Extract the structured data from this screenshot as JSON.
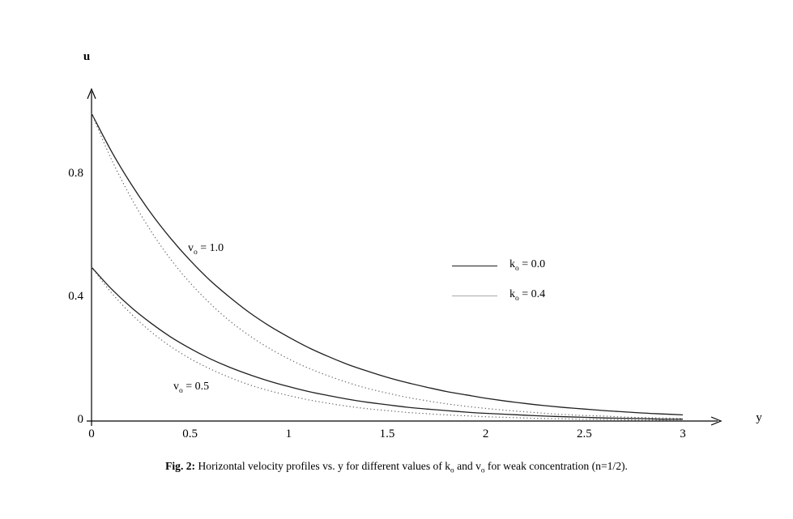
{
  "figure": {
    "caption": {
      "label": "Fig. 2:",
      "part1": " Horizontal velocity profiles vs. y for different values of k",
      "sub1": "o",
      "part2": " and v",
      "sub2": "o",
      "part3": " for weak concentration (n=1/2)."
    }
  },
  "legend": {
    "items": [
      {
        "pre": "k",
        "sub": "o",
        "post": " = 0.0",
        "style": "solid"
      },
      {
        "pre": "k",
        "sub": "o",
        "post": " = 0.4",
        "style": "dotted"
      }
    ]
  },
  "annotations": [
    {
      "pre": "v",
      "sub": "o",
      "post": " = 1.0"
    },
    {
      "pre": "v",
      "sub": "o",
      "post": " = 0.5"
    }
  ],
  "colors": {
    "axis": "#000000",
    "solid_line": "#1f1f1f",
    "dotted_line": "#666666",
    "background": "#ffffff"
  },
  "chart_data": {
    "type": "line",
    "title": "",
    "xlabel": "y",
    "ylabel": "u",
    "xlim": [
      0,
      3
    ],
    "ylim": [
      0,
      1.0
    ],
    "xticks": [
      "0",
      "0.5",
      "1",
      "1.5",
      "2",
      "2.5",
      "3"
    ],
    "yticks": [
      "0",
      "0.4",
      "0.8"
    ],
    "grid": false,
    "legend_position": "right-middle",
    "x": [
      0,
      0.1,
      0.2,
      0.3,
      0.4,
      0.5,
      0.6,
      0.7,
      0.8,
      0.9,
      1.0,
      1.1,
      1.2,
      1.3,
      1.4,
      1.5,
      1.6,
      1.7,
      1.8,
      1.9,
      2.0,
      2.1,
      2.2,
      2.3,
      2.4,
      2.5,
      2.6,
      2.7,
      2.8,
      2.9,
      3.0
    ],
    "series": [
      {
        "name": "v0=1.0 k0=0.0",
        "style": "solid",
        "values": [
          1.0,
          0.878,
          0.771,
          0.677,
          0.595,
          0.522,
          0.458,
          0.403,
          0.353,
          0.31,
          0.273,
          0.239,
          0.21,
          0.184,
          0.162,
          0.142,
          0.125,
          0.11,
          0.096,
          0.085,
          0.074,
          0.065,
          0.057,
          0.05,
          0.044,
          0.039,
          0.034,
          0.03,
          0.026,
          0.023,
          0.02
        ]
      },
      {
        "name": "v0=1.0 k0=0.4",
        "style": "dotted",
        "values": [
          1.0,
          0.852,
          0.726,
          0.619,
          0.527,
          0.449,
          0.383,
          0.326,
          0.278,
          0.237,
          0.202,
          0.172,
          0.147,
          0.125,
          0.106,
          0.091,
          0.077,
          0.066,
          0.056,
          0.048,
          0.041,
          0.035,
          0.03,
          0.025,
          0.021,
          0.018,
          0.016,
          0.013,
          0.011,
          0.01,
          0.008
        ]
      },
      {
        "name": "v0=0.5 k0=0.0",
        "style": "solid",
        "values": [
          0.5,
          0.43,
          0.37,
          0.319,
          0.274,
          0.236,
          0.203,
          0.175,
          0.151,
          0.13,
          0.112,
          0.096,
          0.083,
          0.071,
          0.061,
          0.053,
          0.045,
          0.039,
          0.034,
          0.029,
          0.025,
          0.022,
          0.019,
          0.016,
          0.014,
          0.012,
          0.01,
          0.009,
          0.008,
          0.006,
          0.006
        ]
      },
      {
        "name": "v0=0.5 k0=0.4",
        "style": "dotted",
        "values": [
          0.5,
          0.418,
          0.349,
          0.291,
          0.243,
          0.203,
          0.17,
          0.142,
          0.118,
          0.099,
          0.083,
          0.069,
          0.058,
          0.048,
          0.04,
          0.034,
          0.028,
          0.024,
          0.02,
          0.017,
          0.014,
          0.012,
          0.01,
          0.008,
          0.007,
          0.006,
          0.005,
          0.004,
          0.003,
          0.003,
          0.002
        ]
      }
    ]
  }
}
